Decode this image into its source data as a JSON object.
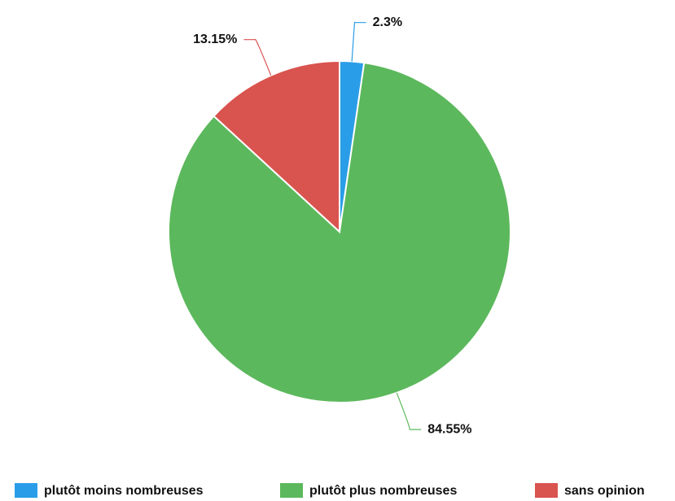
{
  "chart_data": {
    "type": "pie",
    "categories": [
      "plutôt moins nombreuses",
      "plutôt plus nombreuses",
      "sans opinion"
    ],
    "values": [
      2.3,
      84.55,
      13.15
    ],
    "value_labels": [
      "2.3%",
      "84.55%",
      "13.15%"
    ],
    "colors": [
      "#2a9de8",
      "#5cb85c",
      "#d9534f"
    ],
    "legend": "bottom"
  }
}
